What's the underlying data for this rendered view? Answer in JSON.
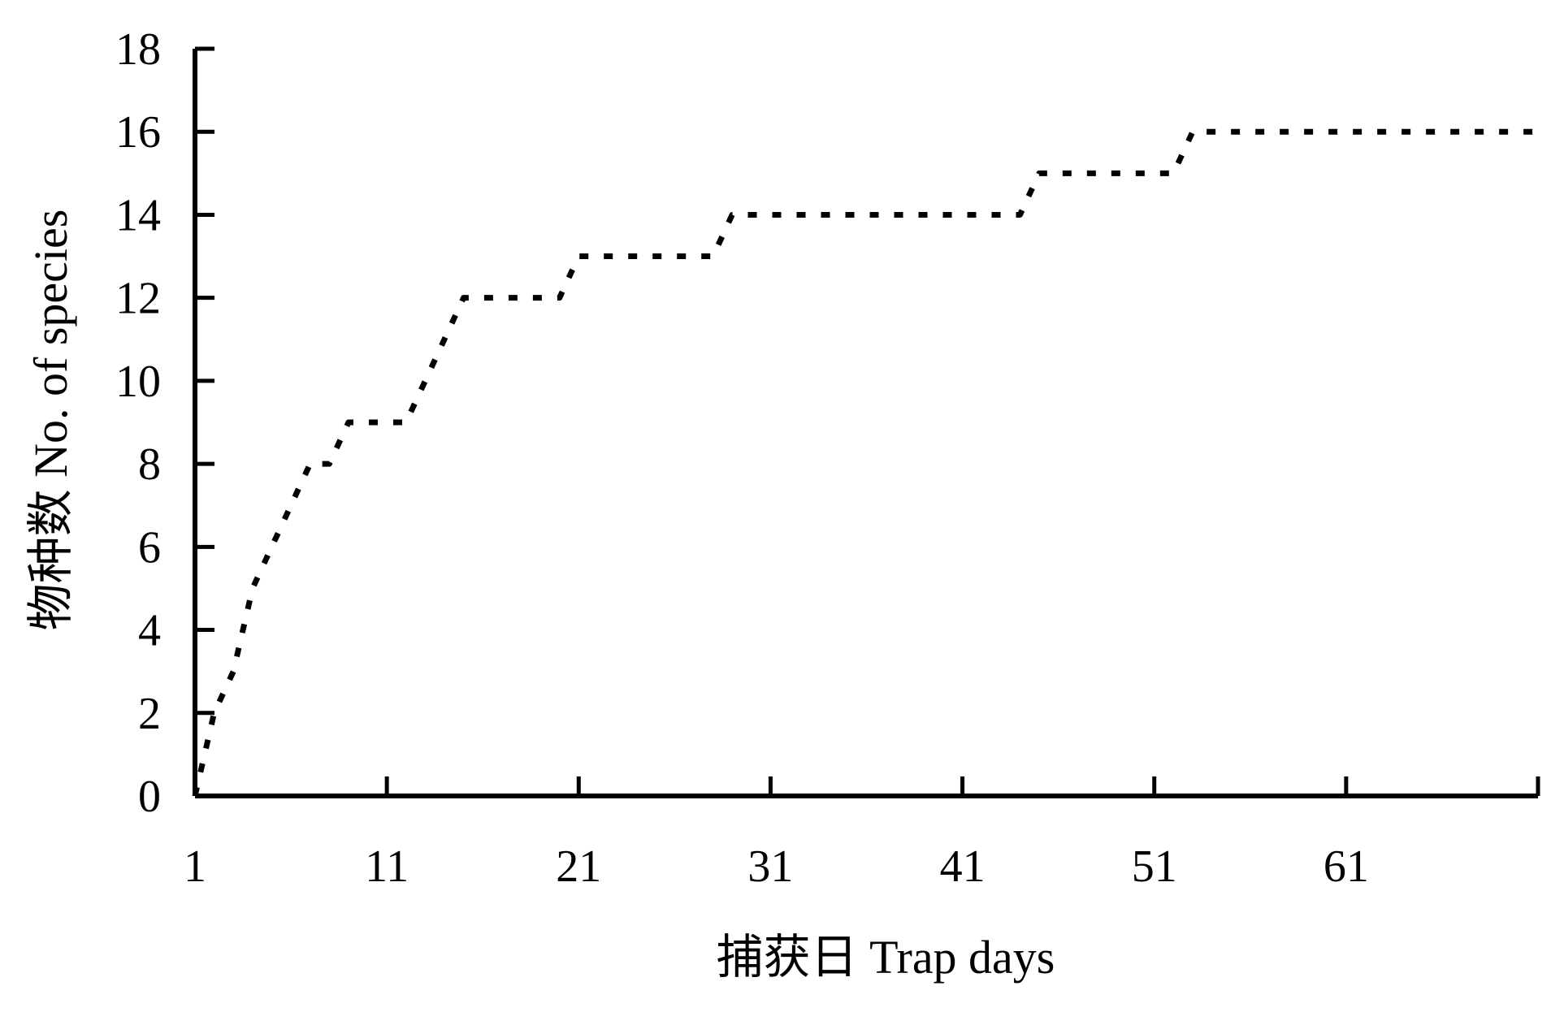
{
  "chart_data": {
    "type": "line",
    "title": "",
    "xlabel": "捕获日 Trap days",
    "ylabel": "物种数 No. of species",
    "x_ticks": [
      1,
      11,
      21,
      31,
      41,
      51,
      61
    ],
    "x_tick_labels": [
      "1",
      "11",
      "21",
      "31",
      "41",
      "51",
      "61"
    ],
    "y_ticks": [
      0,
      2,
      4,
      6,
      8,
      10,
      12,
      14,
      16,
      18
    ],
    "y_tick_labels": [
      "0",
      "2",
      "4",
      "6",
      "8",
      "10",
      "12",
      "14",
      "16",
      "18"
    ],
    "xlim": [
      1,
      71
    ],
    "ylim": [
      0,
      18
    ],
    "grid": false,
    "line_style": "dotted",
    "line_color": "#000000",
    "series": [
      {
        "x": [
          1,
          2,
          3,
          4,
          5,
          6,
          7,
          8,
          9,
          10,
          11,
          12,
          13,
          14,
          15,
          16,
          17,
          18,
          19,
          20,
          21,
          22,
          23,
          24,
          25,
          26,
          27,
          28,
          29,
          30,
          31,
          32,
          33,
          34,
          35,
          36,
          37,
          38,
          39,
          40,
          41,
          42,
          43,
          44,
          45,
          46,
          47,
          48,
          49,
          50,
          51,
          52,
          53,
          54,
          55,
          56,
          57,
          58,
          59,
          60,
          61,
          62,
          63,
          64,
          65,
          66,
          67,
          68,
          69,
          70,
          71
        ],
        "values": [
          0,
          2,
          3,
          5,
          6,
          7,
          8,
          8,
          9,
          9,
          9,
          9,
          10,
          11,
          12,
          12,
          12,
          12,
          12,
          12,
          13,
          13,
          13,
          13,
          13,
          13,
          13,
          13,
          14,
          14,
          14,
          14,
          14,
          14,
          14,
          14,
          14,
          14,
          14,
          14,
          14,
          14,
          14,
          14,
          15,
          15,
          15,
          15,
          15,
          15,
          15,
          15,
          16,
          16,
          16,
          16,
          16,
          16,
          16,
          16,
          16,
          16,
          16,
          16,
          16,
          16,
          16,
          16,
          16,
          16,
          16
        ]
      }
    ]
  }
}
